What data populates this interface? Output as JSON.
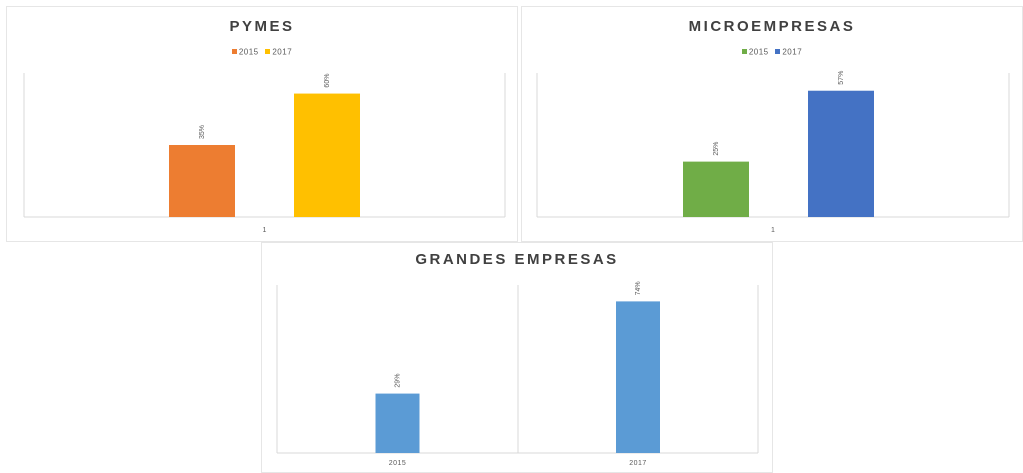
{
  "chart_data": [
    {
      "id": "pymes",
      "type": "bar",
      "title": "PYMES",
      "categories": [
        "1"
      ],
      "series": [
        {
          "name": "2015",
          "color": "#ED7D31",
          "values": [
            35
          ],
          "label": "35%"
        },
        {
          "name": "2017",
          "color": "#FFC000",
          "values": [
            60
          ],
          "label": "60%"
        }
      ],
      "ylim": [
        0,
        70
      ],
      "grid": false,
      "legend": "top-center"
    },
    {
      "id": "micro",
      "type": "bar",
      "title": "MICROEMPRESAS",
      "categories": [
        "1"
      ],
      "series": [
        {
          "name": "2015",
          "color": "#70AD47",
          "values": [
            25
          ],
          "label": "25%"
        },
        {
          "name": "2017",
          "color": "#4472C4",
          "values": [
            57
          ],
          "label": "57%"
        }
      ],
      "ylim": [
        0,
        65
      ],
      "grid": false,
      "legend": "top-center"
    },
    {
      "id": "grandes",
      "type": "bar",
      "title": "GRANDES EMPRESAS",
      "categories": [
        "2015",
        "2017"
      ],
      "values": [
        29,
        74
      ],
      "value_labels": [
        "29%",
        "74%"
      ],
      "color": "#5B9BD5",
      "ylim": [
        0,
        82
      ],
      "grid": false,
      "legend": "none"
    }
  ]
}
